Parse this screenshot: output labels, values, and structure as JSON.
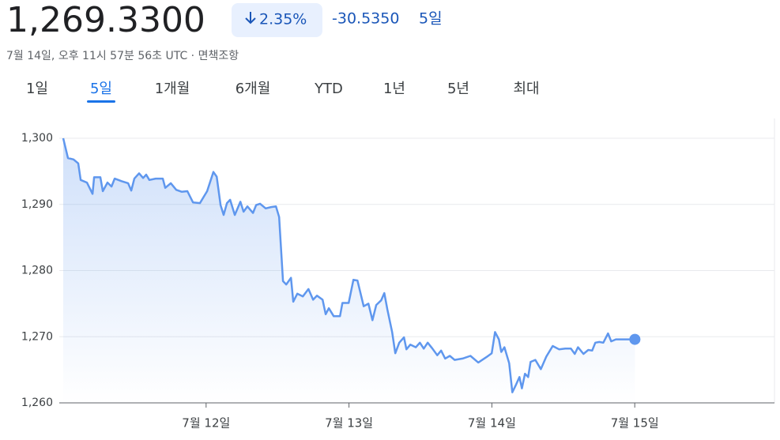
{
  "header": {
    "price": "1,269.3300",
    "change_pct": "2.35%",
    "change_abs": "-30.5350",
    "period": "5일",
    "timestamp": "7월 14일, 오후 11시 57분 56초 UTC · 면책조항"
  },
  "tabs": [
    "1일",
    "5일",
    "1개월",
    "6개월",
    "YTD",
    "1년",
    "5년",
    "최대"
  ],
  "selected_tab": 1,
  "chart_data": {
    "type": "line",
    "color": "#5f97ee",
    "grid": true,
    "xlim": [
      11,
      16
    ],
    "ylim": [
      1260,
      1300
    ],
    "xticks": [
      {
        "value": 12,
        "label": "7월 12일"
      },
      {
        "value": 13,
        "label": "7월 13일"
      },
      {
        "value": 14,
        "label": "7월 14일"
      },
      {
        "value": 15,
        "label": "7월 15일"
      }
    ],
    "yticks": [
      {
        "value": 1260,
        "label": "1,260"
      },
      {
        "value": 1270,
        "label": "1,270"
      },
      {
        "value": 1280,
        "label": "1,280"
      },
      {
        "value": 1290,
        "label": "1,290"
      },
      {
        "value": 1300,
        "label": "1,300"
      }
    ],
    "x": [
      11.0,
      11.033,
      11.072,
      11.105,
      11.122,
      11.166,
      11.205,
      11.216,
      11.26,
      11.277,
      11.31,
      11.338,
      11.36,
      11.41,
      11.454,
      11.476,
      11.498,
      11.531,
      11.559,
      11.581,
      11.603,
      11.647,
      11.697,
      11.714,
      11.753,
      11.791,
      11.83,
      11.869,
      11.908,
      11.957,
      12.007,
      12.051,
      12.074,
      12.101,
      12.123,
      12.146,
      12.168,
      12.201,
      12.24,
      12.262,
      12.289,
      12.328,
      12.35,
      12.378,
      12.417,
      12.455,
      12.489,
      12.511,
      12.538,
      12.561,
      12.594,
      12.61,
      12.638,
      12.677,
      12.716,
      12.749,
      12.776,
      12.815,
      12.837,
      12.859,
      12.893,
      12.937,
      12.954,
      12.998,
      13.031,
      13.059,
      13.103,
      13.136,
      13.164,
      13.191,
      13.225,
      13.247,
      13.269,
      13.302,
      13.324,
      13.352,
      13.385,
      13.402,
      13.429,
      13.468,
      13.496,
      13.523,
      13.551,
      13.584,
      13.618,
      13.645,
      13.673,
      13.706,
      13.739,
      13.795,
      13.85,
      13.905,
      13.961,
      13.999,
      14.022,
      14.049,
      14.066,
      14.088,
      14.121,
      14.143,
      14.166,
      14.193,
      14.21,
      14.232,
      14.254,
      14.271,
      14.304,
      14.343,
      14.381,
      14.426,
      14.47,
      14.514,
      14.553,
      14.58,
      14.603,
      14.641,
      14.675,
      14.702,
      14.724,
      14.752,
      14.78,
      14.813,
      14.835,
      14.868,
      15.001
    ],
    "values": [
      1300,
      1297,
      1296.8,
      1296.2,
      1293.7,
      1293.3,
      1291.6,
      1294.1,
      1294.1,
      1292,
      1293.3,
      1292.7,
      1293.9,
      1293.5,
      1293.2,
      1292.1,
      1293.9,
      1294.7,
      1294,
      1294.5,
      1293.7,
      1293.9,
      1293.9,
      1292.5,
      1293.2,
      1292.2,
      1291.9,
      1292,
      1290.3,
      1290.2,
      1292,
      1294.9,
      1294.2,
      1289.9,
      1288.4,
      1290.2,
      1290.7,
      1288.4,
      1290.4,
      1288.9,
      1289.7,
      1288.7,
      1289.9,
      1290.1,
      1289.4,
      1289.6,
      1289.7,
      1288.1,
      1278.4,
      1277.9,
      1278.9,
      1275.3,
      1276.5,
      1276.1,
      1277.2,
      1275.6,
      1276.2,
      1275.6,
      1273.4,
      1274.3,
      1273.1,
      1273.1,
      1275.1,
      1275.1,
      1278.6,
      1278.5,
      1274.6,
      1275,
      1272.5,
      1274.8,
      1275.5,
      1276.6,
      1274.1,
      1270.7,
      1267.5,
      1269.1,
      1269.9,
      1268.1,
      1268.8,
      1268.4,
      1269.1,
      1268.2,
      1269.1,
      1268.2,
      1267.2,
      1267.9,
      1266.7,
      1267.1,
      1266.5,
      1266.7,
      1267.1,
      1266.1,
      1266.9,
      1267.5,
      1270.7,
      1269.6,
      1267.7,
      1268.4,
      1266,
      1261.6,
      1262.6,
      1263.9,
      1262.2,
      1264.4,
      1263.9,
      1266.2,
      1266.5,
      1265.1,
      1267,
      1268.6,
      1268.1,
      1268.2,
      1268.2,
      1267.4,
      1268.4,
      1267.4,
      1268,
      1267.9,
      1269.1,
      1269.2,
      1269.1,
      1270.5,
      1269.3,
      1269.6,
      1269.6
    ]
  }
}
